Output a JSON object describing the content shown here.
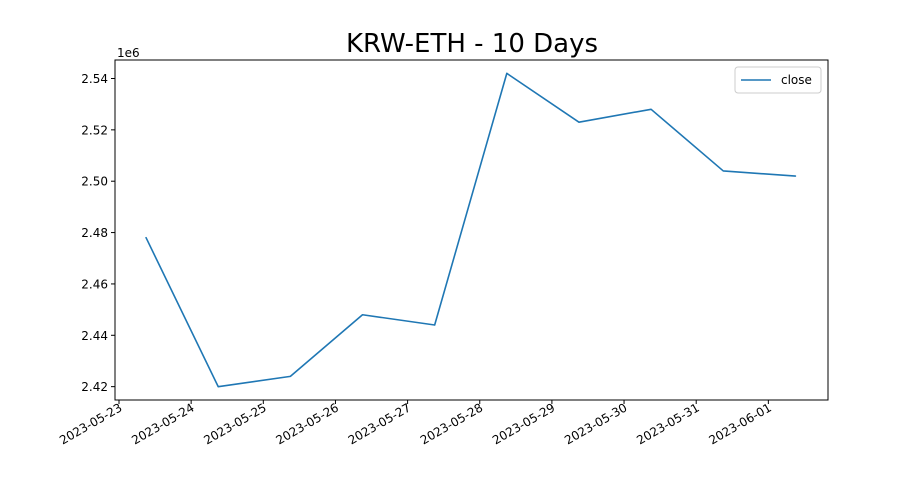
{
  "chart_data": {
    "type": "line",
    "title": "KRW-ETH - 10 Days",
    "xlabel": "",
    "ylabel": "",
    "y_offset_label": "1e6",
    "x_tick_labels": [
      "2023-05-23",
      "2023-05-24",
      "2023-05-25",
      "2023-05-26",
      "2023-05-27",
      "2023-05-28",
      "2023-05-29",
      "2023-05-30",
      "2023-05-31",
      "2023-06-01"
    ],
    "y_tick_labels": [
      "2.42",
      "2.44",
      "2.46",
      "2.48",
      "2.50",
      "2.52",
      "2.54"
    ],
    "y_ticks": [
      2.42,
      2.44,
      2.46,
      2.48,
      2.5,
      2.52,
      2.54
    ],
    "ylim": [
      2.4148,
      2.5472
    ],
    "xlim": [
      "2023-05-23",
      "2023-06-01"
    ],
    "grid": false,
    "legend": "top-right",
    "series": [
      {
        "name": "close",
        "color": "#1f77b4",
        "x": [
          "2023-05-23 09:00",
          "2023-05-24 09:00",
          "2023-05-25 09:00",
          "2023-05-26 09:00",
          "2023-05-27 09:00",
          "2023-05-28 09:00",
          "2023-05-29 09:00",
          "2023-05-30 09:00",
          "2023-05-31 09:00",
          "2023-06-01 09:00"
        ],
        "values": [
          2.478,
          2.42,
          2.424,
          2.448,
          2.444,
          2.542,
          2.523,
          2.528,
          2.504,
          2.502
        ]
      }
    ]
  }
}
